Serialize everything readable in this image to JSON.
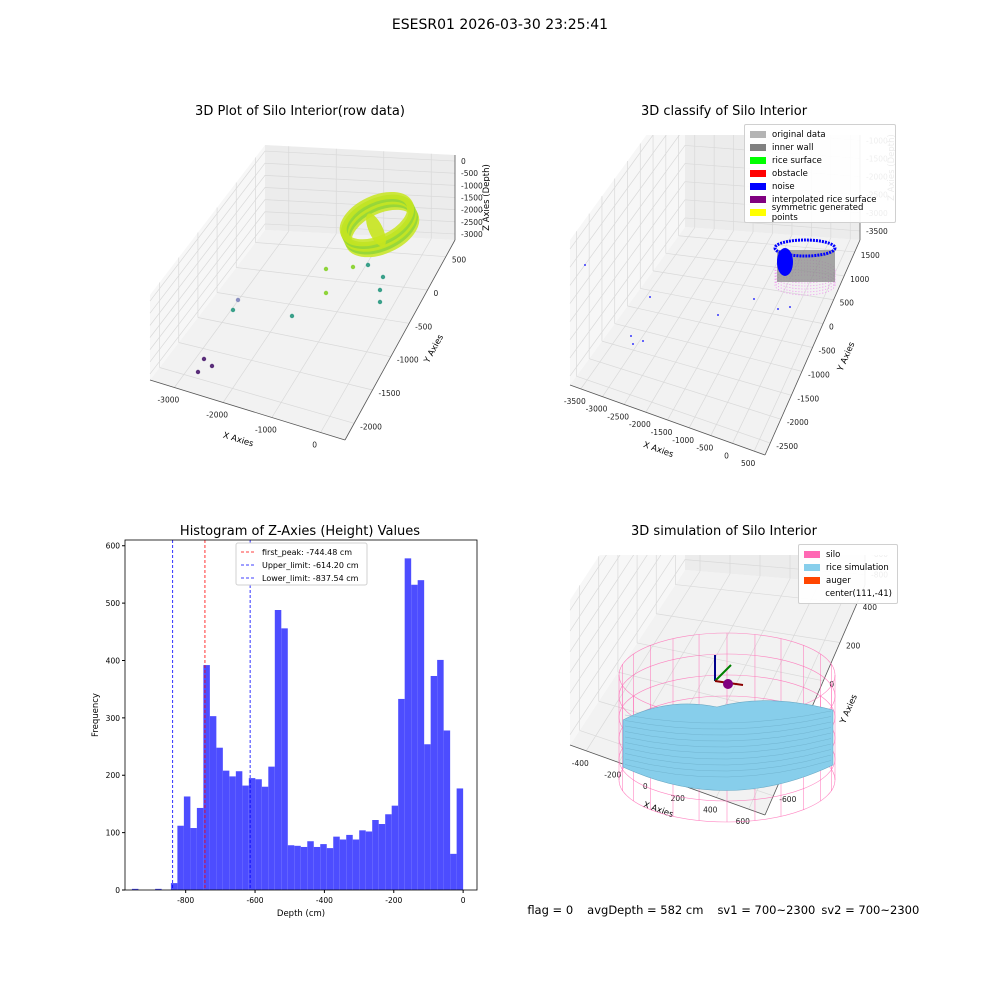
{
  "figure_title": "ESESR01 2026-03-30 23:25:41",
  "status": {
    "flag": "flag = 0",
    "avg_depth": "avgDepth = 582 cm",
    "sv1": "sv1 = 700~2300",
    "sv2": "sv2 = 700~2300"
  },
  "chart_data": [
    {
      "type": "scatter",
      "title": "3D Plot of Silo Interior(row data)",
      "xlabel": "X Axies",
      "ylabel": "Y Axies",
      "zlabel": "Z Axies (Depth)",
      "xticks": [
        "-3000",
        "-2000",
        "-1000",
        "0"
      ],
      "yticks": [
        "500",
        "0",
        "-500",
        "-1000",
        "-1500",
        "-2000"
      ],
      "zticks": [
        "0",
        "-500",
        "-1000",
        "-1500",
        "-2000",
        "-2500",
        "-3000"
      ],
      "colors": {
        "ring_main": "#c8e61e",
        "ring_shade": "#8fd43a",
        "sparse": "#3aa08a",
        "deep": "#5a2e7a"
      }
    },
    {
      "type": "scatter",
      "title": "3D classify of Silo Interior",
      "xlabel": "X Axies",
      "ylabel": "Y Axies",
      "zlabel": "Z Axies (Depth)",
      "xticks": [
        "-3500",
        "-3000",
        "-2500",
        "-2000",
        "-1500",
        "-1000",
        "-500",
        "0",
        "500"
      ],
      "yticks": [
        "1500",
        "1000",
        "500",
        "0",
        "-500",
        "-1000",
        "-1500",
        "-2000",
        "-2500"
      ],
      "zticks": [
        "0",
        "-500",
        "-1000",
        "-1500",
        "-2000",
        "-2500",
        "-3000",
        "-3500"
      ],
      "legend": [
        {
          "label": "original data",
          "color": "#b4b4b4"
        },
        {
          "label": "inner wall",
          "color": "#808080"
        },
        {
          "label": "rice surface",
          "color": "#00ff00"
        },
        {
          "label": "obstacle",
          "color": "#ff0000"
        },
        {
          "label": "noise",
          "color": "#0000ff"
        },
        {
          "label": "interpolated rice surface",
          "color": "#800080"
        },
        {
          "label": "symmetric generated points",
          "color": "#ffff00"
        }
      ]
    },
    {
      "type": "bar",
      "title": "Histogram of Z-Axies (Height) Values",
      "xlabel": "Depth (cm)",
      "ylabel": "Frequency",
      "xlim": [
        -975,
        40
      ],
      "ylim": [
        0,
        610
      ],
      "xticks": [
        -800,
        -600,
        -400,
        -200,
        0
      ],
      "yticks": [
        0,
        100,
        200,
        300,
        400,
        500,
        600
      ],
      "bin_start": -960,
      "bin_width": 20,
      "values": [
        0,
        2,
        0,
        0,
        0,
        0,
        0,
        0,
        0,
        0,
        0,
        0,
        0,
        0,
        0,
        0,
        0,
        0,
        0,
        0,
        0,
        0,
        0,
        0,
        0,
        0,
        0,
        0,
        0,
        0,
        0,
        0,
        0,
        0,
        0,
        0,
        0,
        0,
        0,
        0,
        0,
        0,
        0,
        0,
        0,
        0,
        0,
        0,
        0,
        0
      ],
      "bars": [
        {
          "left": -930,
          "value": 2
        },
        {
          "left": -880,
          "value": 2
        },
        {
          "left": -846,
          "value": 12
        },
        {
          "left": -832,
          "value": 112
        },
        {
          "left": -818,
          "value": 163
        },
        {
          "left": -804,
          "value": 108
        },
        {
          "left": -790,
          "value": 143
        },
        {
          "left": -776,
          "value": 392
        },
        {
          "left": -762,
          "value": 303
        },
        {
          "left": -748,
          "value": 248
        },
        {
          "left": -734,
          "value": 208
        },
        {
          "left": -720,
          "value": 198
        },
        {
          "left": -706,
          "value": 207
        },
        {
          "left": -692,
          "value": 182
        },
        {
          "left": -678,
          "value": 195
        },
        {
          "left": -664,
          "value": 193
        },
        {
          "left": -650,
          "value": 180
        },
        {
          "left": -636,
          "value": 215
        },
        {
          "left": -622,
          "value": 488
        },
        {
          "left": -608,
          "value": 456
        },
        {
          "left": -594,
          "value": 78
        },
        {
          "left": -580,
          "value": 77
        },
        {
          "left": -566,
          "value": 75
        },
        {
          "left": -552,
          "value": 85
        },
        {
          "left": -538,
          "value": 75
        },
        {
          "left": -524,
          "value": 80
        },
        {
          "left": -510,
          "value": 73
        },
        {
          "left": -496,
          "value": 93
        },
        {
          "left": -482,
          "value": 88
        },
        {
          "left": -468,
          "value": 96
        },
        {
          "left": -454,
          "value": 88
        },
        {
          "left": -440,
          "value": 104
        },
        {
          "left": -426,
          "value": 102
        },
        {
          "left": -412,
          "value": 122
        },
        {
          "left": -398,
          "value": 115
        },
        {
          "left": -384,
          "value": 132
        },
        {
          "left": -370,
          "value": 147
        },
        {
          "left": -356,
          "value": 333
        },
        {
          "left": -342,
          "value": 578
        },
        {
          "left": -328,
          "value": 532
        },
        {
          "left": -314,
          "value": 540
        },
        {
          "left": -300,
          "value": 254
        },
        {
          "left": -286,
          "value": 373
        },
        {
          "left": -272,
          "value": 401
        },
        {
          "left": -258,
          "value": 278
        },
        {
          "left": -244,
          "value": 63
        },
        {
          "left": -230,
          "value": 177
        }
      ],
      "vlines": [
        {
          "label": "first_peak: -744.48 cm",
          "x": -744.48,
          "color": "#ff0000"
        },
        {
          "label": "Upper_limit: -614.20 cm",
          "x": -614.2,
          "color": "#0000ff"
        },
        {
          "label": "Lower_limit: -837.54 cm",
          "x": -837.54,
          "color": "#0000ff"
        }
      ],
      "bar_color": "#4d4dff"
    },
    {
      "type": "scatter",
      "title": "3D simulation of Silo Interior",
      "xlabel": "X Axies",
      "ylabel": "Y Axies",
      "zlabel": "Z Axies (Depth)",
      "xticks": [
        "-400",
        "-200",
        "0",
        "200",
        "400",
        "600"
      ],
      "yticks": [
        "400",
        "200",
        "0",
        "-200",
        "-400",
        "-600"
      ],
      "zticks": [
        "400",
        "200",
        "0",
        "-200",
        "-400",
        "-600",
        "-800"
      ],
      "legend": [
        {
          "label": "silo",
          "color": "#ff69b4"
        },
        {
          "label": "rice simulation",
          "color": "#87ceeb"
        },
        {
          "label": "auger",
          "color": "#ff4500"
        },
        {
          "label": "center(111,-41)",
          "color": ""
        }
      ]
    }
  ]
}
